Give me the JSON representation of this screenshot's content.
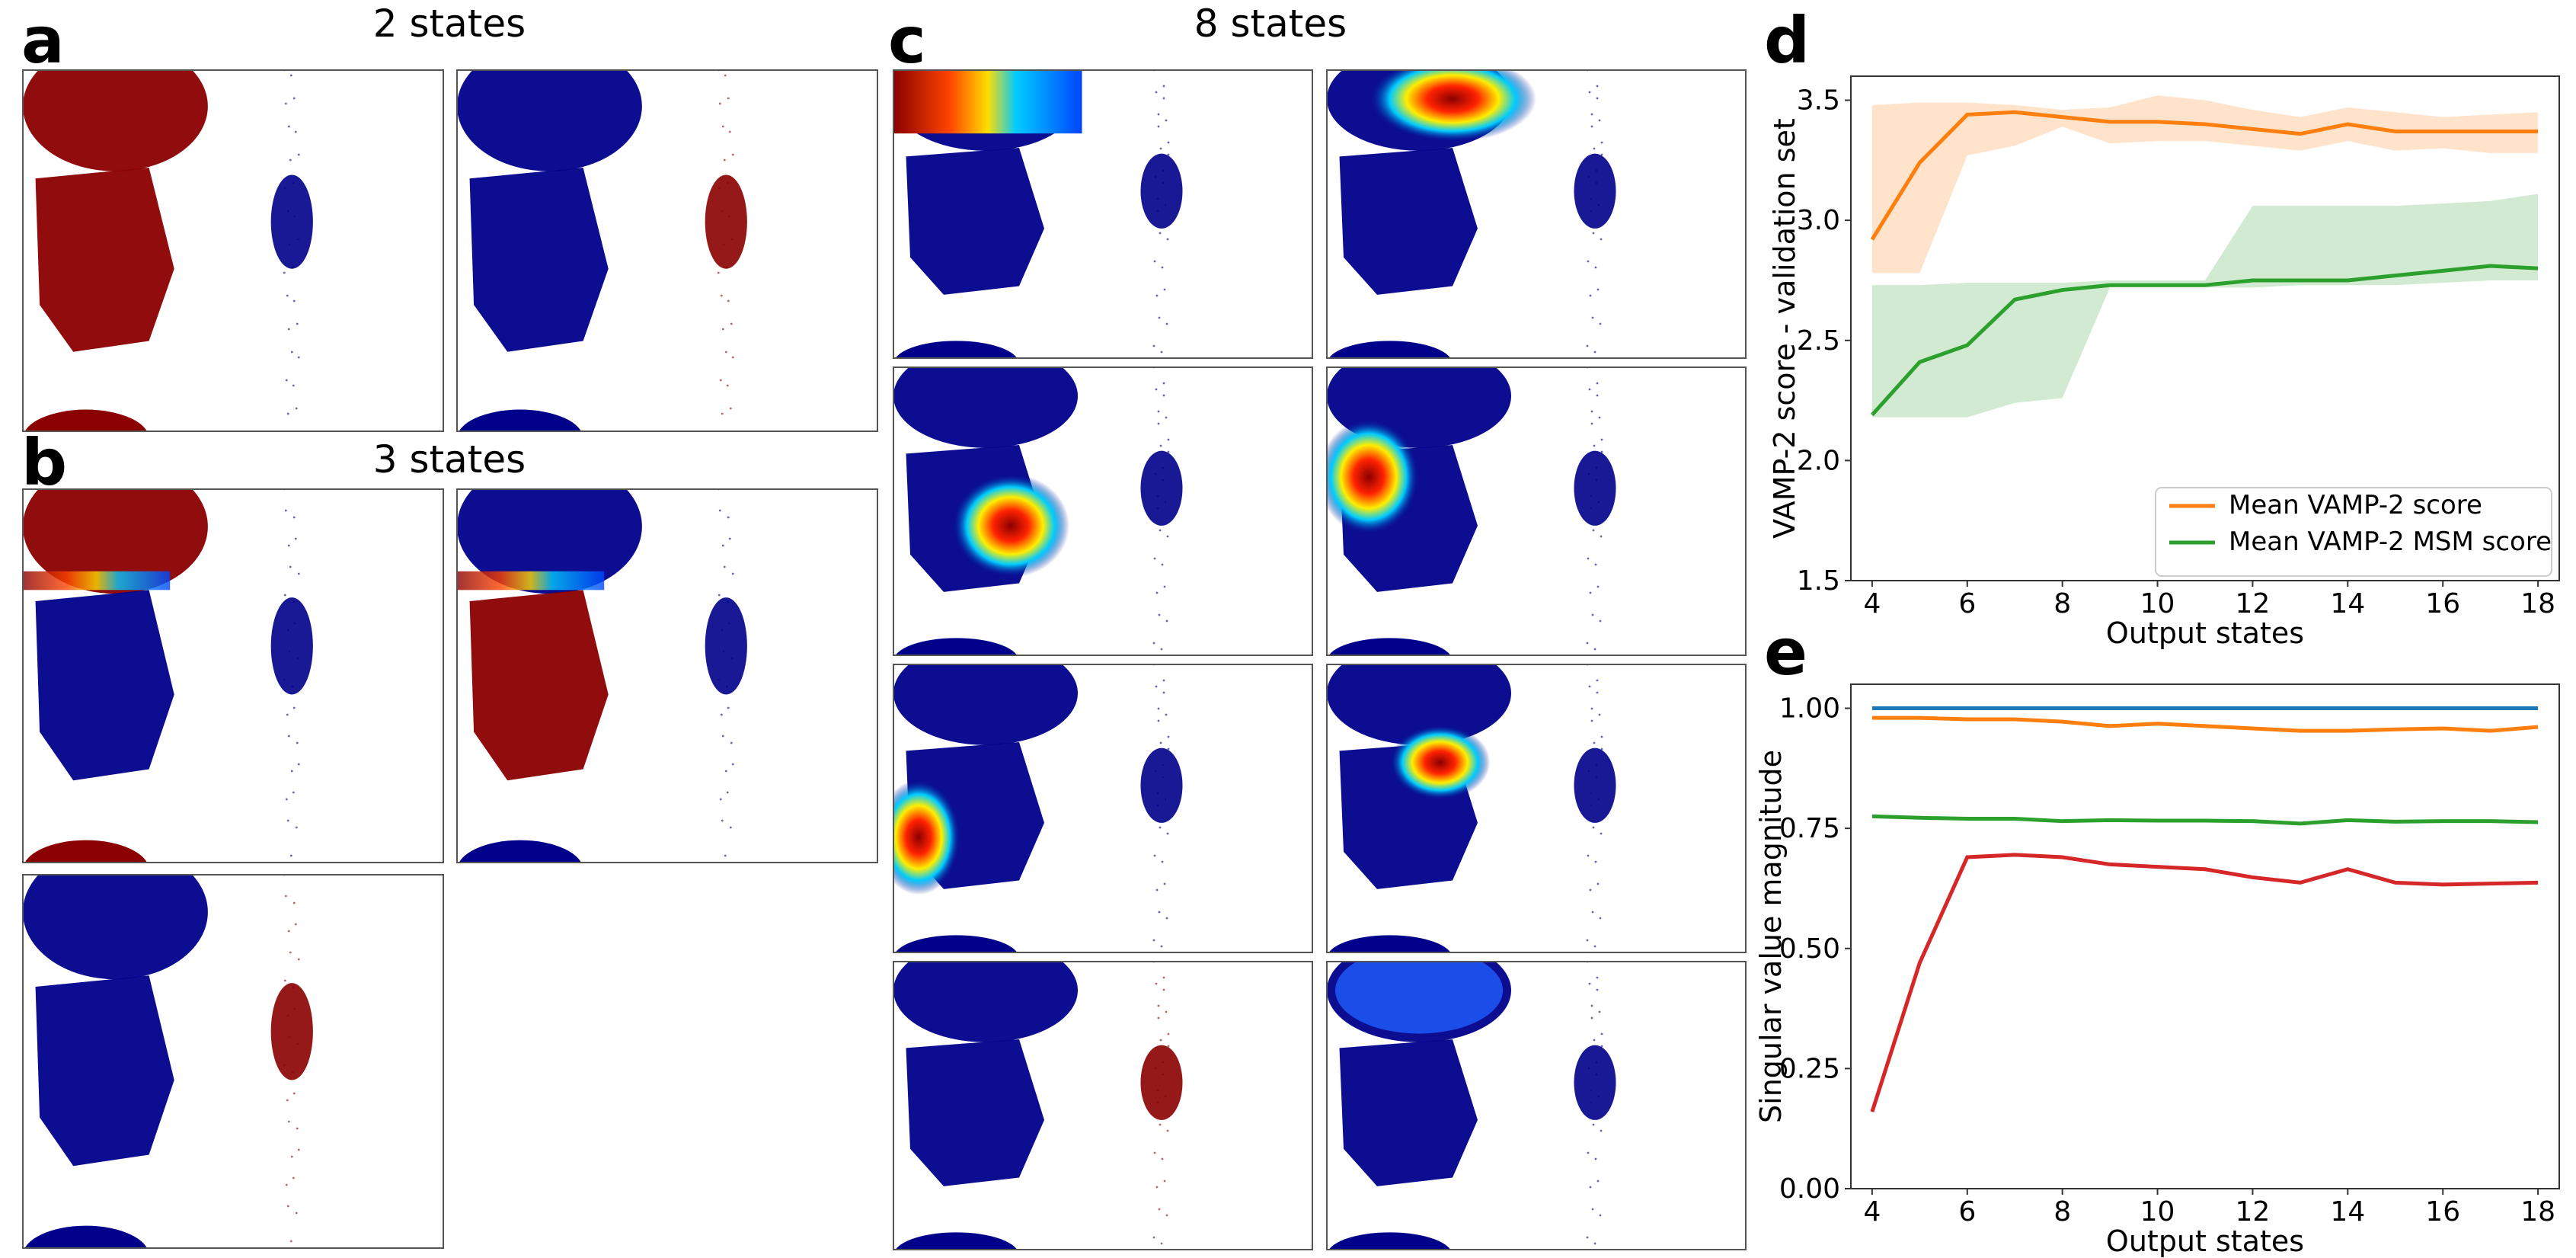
{
  "panel_labels": [
    "a",
    "b",
    "c",
    "d",
    "e"
  ],
  "titles": {
    "a": "2 states",
    "b": "3 states",
    "c": "8 states"
  },
  "scatter_panels": {
    "a": [
      {
        "highlight": "upper-and-lower-basins",
        "label_hint": "red on top/middle blob"
      },
      {
        "highlight": "side-blob"
      }
    ],
    "b": [
      {
        "highlight": "top-blob"
      },
      {
        "highlight": "middle-blob"
      },
      {
        "highlight": "side-blob"
      }
    ],
    "c": [
      {
        "highlight": "top-left"
      },
      {
        "highlight": "top-right"
      },
      {
        "highlight": "middle-lower-right"
      },
      {
        "highlight": "middle-left"
      },
      {
        "highlight": "lower-left"
      },
      {
        "highlight": "middle-center"
      },
      {
        "highlight": "side-blob"
      },
      {
        "highlight": "top-faint"
      }
    ]
  },
  "colors": {
    "dark_blue": "#00008b",
    "dark_red": "#8b0000",
    "orange": "#ff7f0e",
    "green": "#2ca02c",
    "blue": "#1f77b4",
    "red": "#d62728"
  },
  "chart_data": [
    {
      "panel": "d",
      "type": "line",
      "xlabel": "Output states",
      "ylabel": "VAMP-2 score - validation set",
      "xlim": [
        4,
        18
      ],
      "ylim": [
        1.5,
        3.6
      ],
      "xticks": [
        "4",
        "6",
        "8",
        "10",
        "12",
        "14",
        "16",
        "18"
      ],
      "yticks": [
        "1.5",
        "2.0",
        "2.5",
        "3.0",
        "3.5"
      ],
      "legend_position": "lower-right",
      "x": [
        4,
        5,
        6,
        7,
        8,
        9,
        10,
        11,
        12,
        13,
        14,
        15,
        16,
        17,
        18
      ],
      "series": [
        {
          "name": "Mean VAMP-2 score",
          "color": "#ff7f0e",
          "values": [
            2.92,
            3.24,
            3.44,
            3.45,
            3.43,
            3.41,
            3.41,
            3.4,
            3.38,
            3.36,
            3.4,
            3.37,
            3.37,
            3.37,
            3.37
          ],
          "upper": [
            3.48,
            3.49,
            3.49,
            3.48,
            3.46,
            3.47,
            3.52,
            3.5,
            3.46,
            3.43,
            3.47,
            3.45,
            3.43,
            3.44,
            3.45
          ],
          "lower": [
            2.78,
            2.78,
            3.27,
            3.31,
            3.39,
            3.32,
            3.33,
            3.33,
            3.31,
            3.29,
            3.33,
            3.29,
            3.3,
            3.28,
            3.28
          ]
        },
        {
          "name": "Mean VAMP-2 MSM score",
          "color": "#2ca02c",
          "values": [
            2.19,
            2.41,
            2.48,
            2.67,
            2.71,
            2.73,
            2.73,
            2.73,
            2.75,
            2.75,
            2.75,
            2.77,
            2.79,
            2.81,
            2.8
          ],
          "upper": [
            2.73,
            2.73,
            2.74,
            2.74,
            2.74,
            2.75,
            2.75,
            2.75,
            3.06,
            3.06,
            3.06,
            3.06,
            3.07,
            3.08,
            3.11
          ],
          "lower": [
            2.18,
            2.18,
            2.18,
            2.24,
            2.26,
            2.72,
            2.72,
            2.72,
            2.72,
            2.73,
            2.73,
            2.73,
            2.74,
            2.75,
            2.75
          ]
        }
      ]
    },
    {
      "panel": "e",
      "type": "line",
      "xlabel": "Output states",
      "ylabel": "Singular value magnitude",
      "xlim": [
        4,
        18
      ],
      "ylim": [
        0.0,
        1.05
      ],
      "xticks": [
        "4",
        "6",
        "8",
        "10",
        "12",
        "14",
        "16",
        "18"
      ],
      "yticks": [
        "0.00",
        "0.25",
        "0.50",
        "0.75",
        "1.00"
      ],
      "x": [
        4,
        5,
        6,
        7,
        8,
        9,
        10,
        11,
        12,
        13,
        14,
        15,
        16,
        17,
        18
      ],
      "series": [
        {
          "color": "#1f77b4",
          "values": [
            1.0,
            1.0,
            1.0,
            1.0,
            1.0,
            1.0,
            1.0,
            1.0,
            1.0,
            1.0,
            1.0,
            1.0,
            1.0,
            1.0,
            1.0
          ]
        },
        {
          "color": "#ff7f0e",
          "values": [
            0.98,
            0.98,
            0.977,
            0.977,
            0.972,
            0.963,
            0.968,
            0.963,
            0.958,
            0.953,
            0.953,
            0.956,
            0.958,
            0.953,
            0.961
          ]
        },
        {
          "color": "#2ca02c",
          "values": [
            0.775,
            0.772,
            0.77,
            0.77,
            0.765,
            0.767,
            0.766,
            0.766,
            0.765,
            0.76,
            0.767,
            0.764,
            0.765,
            0.765,
            0.763
          ]
        },
        {
          "color": "#d62728",
          "values": [
            0.16,
            0.47,
            0.69,
            0.695,
            0.69,
            0.675,
            0.67,
            0.665,
            0.648,
            0.637,
            0.665,
            0.637,
            0.633,
            0.635,
            0.637
          ]
        }
      ]
    }
  ]
}
